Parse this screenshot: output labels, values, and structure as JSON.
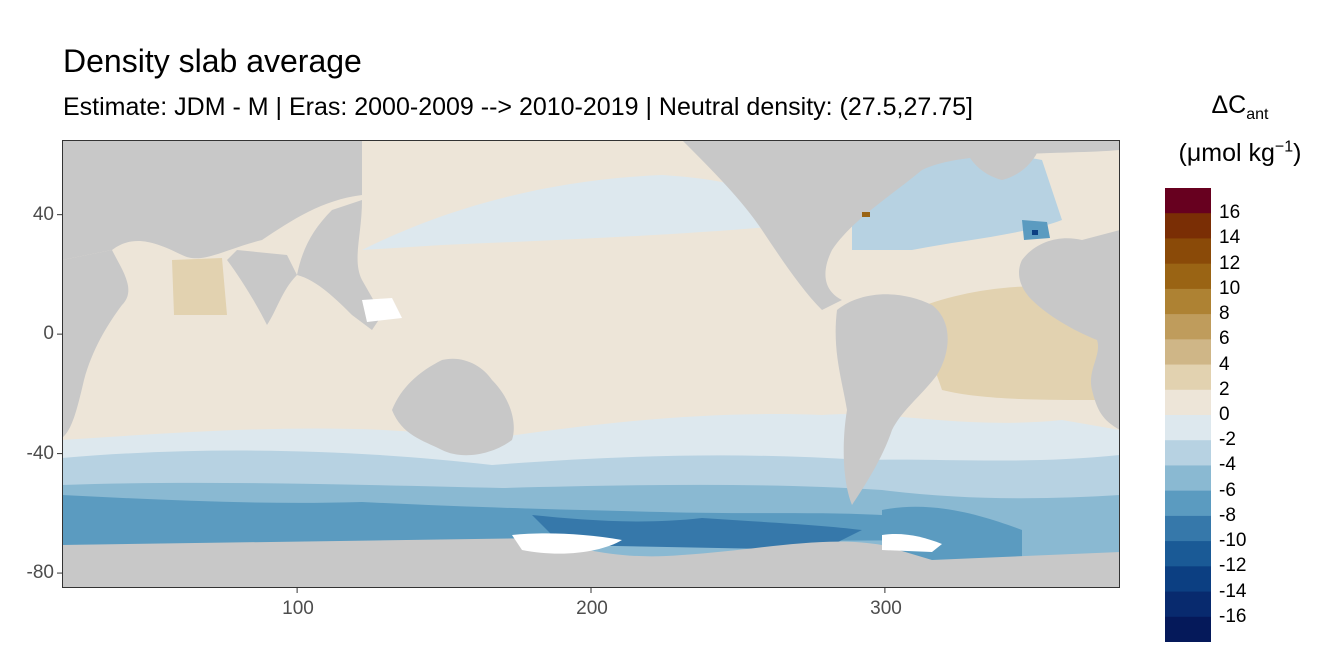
{
  "title": "Density slab average",
  "subtitle": "Estimate: JDM - M | Eras: 2000-2009 --> 2010-2019 | Neutral density: (27.5,27.75]",
  "legend": {
    "title_symbol": "ΔC",
    "title_sub": "ant",
    "unit_prefix": "(μmol kg",
    "unit_sup": "−1",
    "unit_suffix": ")",
    "breaks": [
      "16",
      "14",
      "12",
      "10",
      "8",
      "6",
      "4",
      "2",
      "0",
      "-2",
      "-4",
      "-6",
      "-8",
      "-10",
      "-12",
      "-14",
      "-16"
    ],
    "colors": [
      "#67001f",
      "#7a2e05",
      "#8a4a08",
      "#9a6414",
      "#ae8233",
      "#bf9c5c",
      "#cfb687",
      "#e2d2b0",
      "#ede5d8",
      "#dde8ee",
      "#b7d2e2",
      "#8ab9d2",
      "#5b9bc0",
      "#3678aa",
      "#1a5a96",
      "#0c3f82",
      "#082a6e",
      "#05195a"
    ]
  },
  "axes": {
    "y_ticks": [
      "40",
      "0",
      "-40",
      "-80"
    ],
    "x_ticks": [
      "100",
      "200",
      "300"
    ],
    "lon_range": [
      20,
      380
    ],
    "lat_range": [
      -85,
      65
    ],
    "y_values": [
      40,
      0,
      -40,
      -80
    ],
    "x_values": [
      100,
      200,
      300
    ]
  },
  "map_colors": {
    "land": "#c8c8c8",
    "no_data": "#ffffff",
    "frame": "#333333"
  }
}
